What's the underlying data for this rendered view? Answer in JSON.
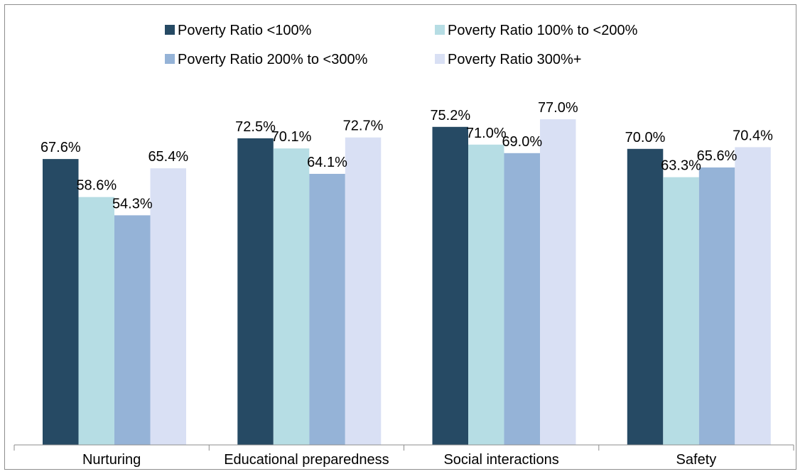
{
  "chart_data": {
    "type": "bar",
    "categories": [
      "Nurturing",
      "Educational preparedness",
      "Social interactions",
      "Safety"
    ],
    "series": [
      {
        "name": "Poverty Ratio <100%",
        "color": "#264a64",
        "values": [
          67.6,
          72.5,
          75.2,
          70.0
        ],
        "labels": [
          "67.6%",
          "72.5%",
          "75.2%",
          "70.0%"
        ]
      },
      {
        "name": "Poverty Ratio 100% to <200%",
        "color": "#b6dde4",
        "values": [
          58.6,
          70.1,
          71.0,
          63.3
        ],
        "labels": [
          "58.6%",
          "70.1%",
          "71.0%",
          "63.3%"
        ]
      },
      {
        "name": "Poverty Ratio 200% to <300%",
        "color": "#95b3d7",
        "values": [
          54.3,
          64.1,
          69.0,
          65.6
        ],
        "labels": [
          "54.3%",
          "64.1%",
          "69.0%",
          "65.6%"
        ]
      },
      {
        "name": "Poverty Ratio 300%+",
        "color": "#d9e0f4",
        "values": [
          65.4,
          72.7,
          77.0,
          70.4
        ],
        "labels": [
          "65.4%",
          "72.7%",
          "77.0%",
          "70.4%"
        ]
      }
    ],
    "ylim": [
      0,
      100
    ],
    "grid": false,
    "legend_position": "top"
  }
}
